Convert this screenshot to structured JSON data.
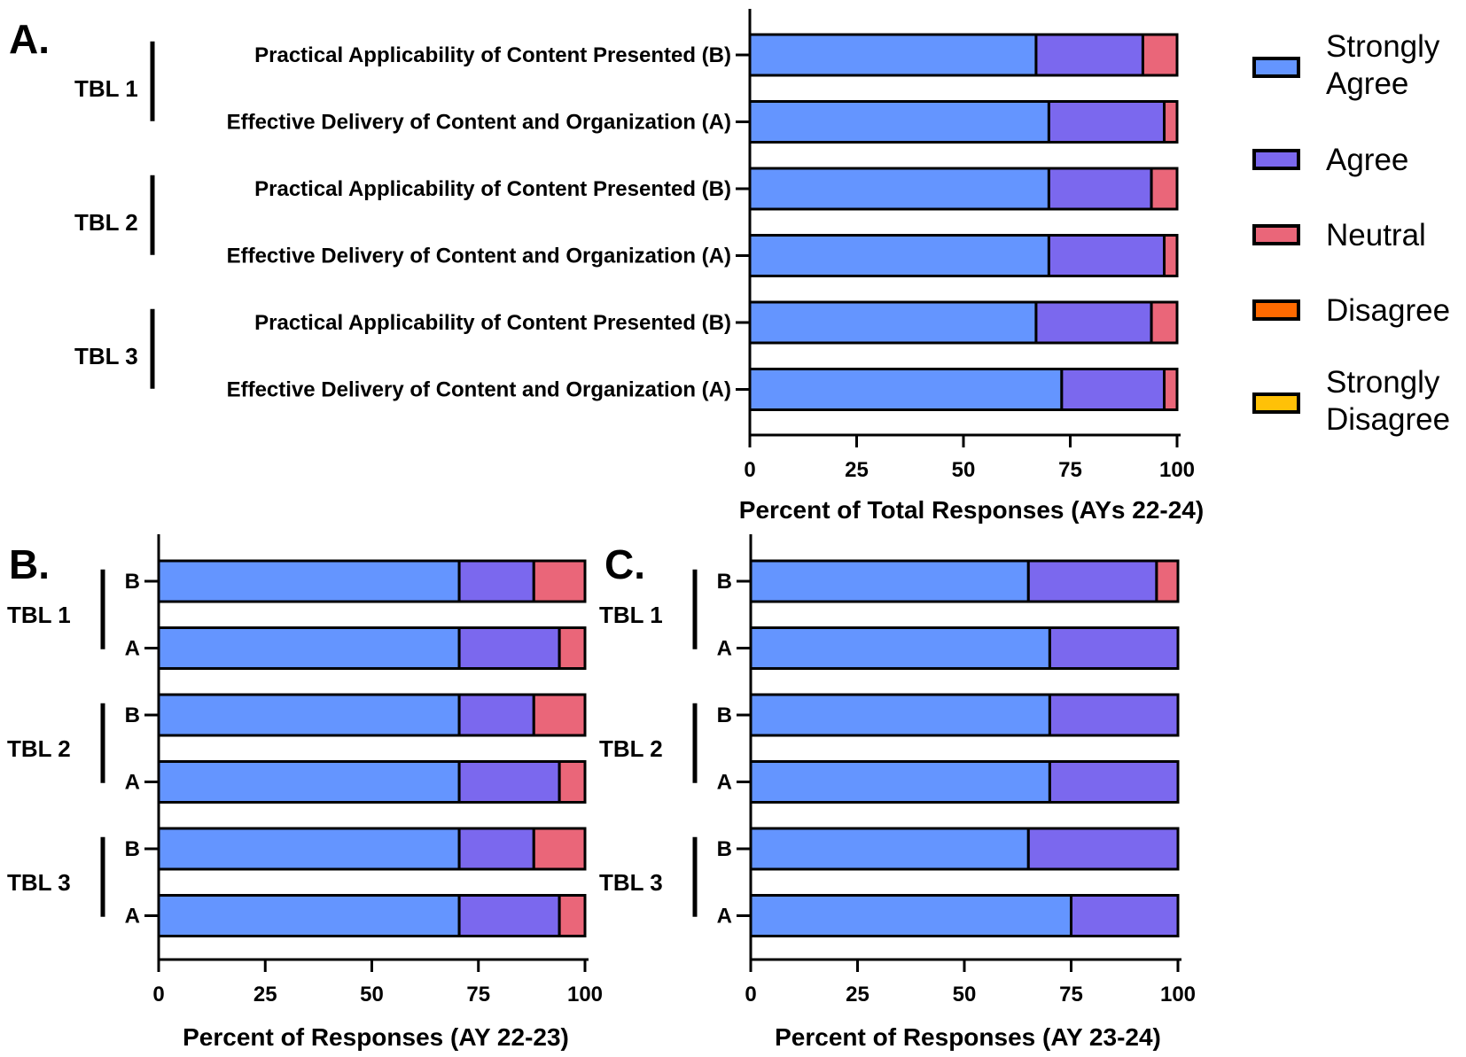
{
  "colors": {
    "Strongly Agree": "#6495ff",
    "Agree": "#7b68ee",
    "Neutral": "#ea6679",
    "Disagree": "#ff6a00",
    "Strongly Disagree": "#ffc107"
  },
  "legend": {
    "items": [
      {
        "key": "Strongly Agree",
        "lines": [
          "Strongly",
          "Agree"
        ]
      },
      {
        "key": "Agree",
        "lines": [
          "Agree"
        ]
      },
      {
        "key": "Neutral",
        "lines": [
          "Neutral"
        ]
      },
      {
        "key": "Disagree",
        "lines": [
          "Disagree"
        ]
      },
      {
        "key": "Strongly Disagree",
        "lines": [
          "Strongly",
          "Disagree"
        ]
      }
    ]
  },
  "chart_data": [
    {
      "panel": "A.",
      "type": "bar",
      "orientation": "horizontal",
      "stacked": true,
      "xlabel": "Percent of Total Responses (AYs 22-24)",
      "xlim": [
        0,
        100
      ],
      "xticks": [
        0,
        25,
        50,
        75,
        100
      ],
      "series_names": [
        "Strongly Agree",
        "Agree",
        "Neutral",
        "Disagree",
        "Strongly Disagree"
      ],
      "groups": [
        {
          "label": "TBL 1",
          "bars": [
            {
              "label": "Practical Applicability of Content Presented (B)",
              "values": [
                67,
                25,
                8,
                0,
                0
              ]
            },
            {
              "label": "Effective Delivery of Content and Organization (A)",
              "values": [
                70,
                27,
                3,
                0,
                0
              ]
            }
          ]
        },
        {
          "label": "TBL 2",
          "bars": [
            {
              "label": "Practical Applicability of Content Presented (B)",
              "values": [
                70,
                24,
                6,
                0,
                0
              ]
            },
            {
              "label": "Effective Delivery of Content and Organization (A)",
              "values": [
                70,
                27,
                3,
                0,
                0
              ]
            }
          ]
        },
        {
          "label": "TBL 3",
          "bars": [
            {
              "label": "Practical Applicability of Content Presented (B)",
              "values": [
                67,
                27,
                6,
                0,
                0
              ]
            },
            {
              "label": "Effective Delivery of Content and Organization (A)",
              "values": [
                73,
                24,
                3,
                0,
                0
              ]
            }
          ]
        }
      ]
    },
    {
      "panel": "B.",
      "type": "bar",
      "orientation": "horizontal",
      "stacked": true,
      "xlabel": "Percent of Responses (AY 22-23)",
      "xlim": [
        0,
        100
      ],
      "xticks": [
        0,
        25,
        50,
        75,
        100
      ],
      "series_names": [
        "Strongly Agree",
        "Agree",
        "Neutral",
        "Disagree",
        "Strongly Disagree"
      ],
      "groups": [
        {
          "label": "TBL 1",
          "bars": [
            {
              "label": "B",
              "values": [
                70.5,
                17.5,
                12,
                0,
                0
              ]
            },
            {
              "label": "A",
              "values": [
                70.5,
                23.5,
                6,
                0,
                0
              ]
            }
          ]
        },
        {
          "label": "TBL 2",
          "bars": [
            {
              "label": "B",
              "values": [
                70.5,
                17.5,
                12,
                0,
                0
              ]
            },
            {
              "label": "A",
              "values": [
                70.5,
                23.5,
                6,
                0,
                0
              ]
            }
          ]
        },
        {
          "label": "TBL 3",
          "bars": [
            {
              "label": "B",
              "values": [
                70.5,
                17.5,
                12,
                0,
                0
              ]
            },
            {
              "label": "A",
              "values": [
                70.5,
                23.5,
                6,
                0,
                0
              ]
            }
          ]
        }
      ]
    },
    {
      "panel": "C.",
      "type": "bar",
      "orientation": "horizontal",
      "stacked": true,
      "xlabel": "Percent of Responses (AY 23-24)",
      "xlim": [
        0,
        100
      ],
      "xticks": [
        0,
        25,
        50,
        75,
        100
      ],
      "series_names": [
        "Strongly Agree",
        "Agree",
        "Neutral",
        "Disagree",
        "Strongly Disagree"
      ],
      "groups": [
        {
          "label": "TBL 1",
          "bars": [
            {
              "label": "B",
              "values": [
                65,
                30,
                5,
                0,
                0
              ]
            },
            {
              "label": "A",
              "values": [
                70,
                30,
                0,
                0,
                0
              ]
            }
          ]
        },
        {
          "label": "TBL 2",
          "bars": [
            {
              "label": "B",
              "values": [
                70,
                30,
                0,
                0,
                0
              ]
            },
            {
              "label": "A",
              "values": [
                70,
                30,
                0,
                0,
                0
              ]
            }
          ]
        },
        {
          "label": "TBL 3",
          "bars": [
            {
              "label": "B",
              "values": [
                65,
                35,
                0,
                0,
                0
              ]
            },
            {
              "label": "A",
              "values": [
                75,
                25,
                0,
                0,
                0
              ]
            }
          ]
        }
      ]
    }
  ]
}
